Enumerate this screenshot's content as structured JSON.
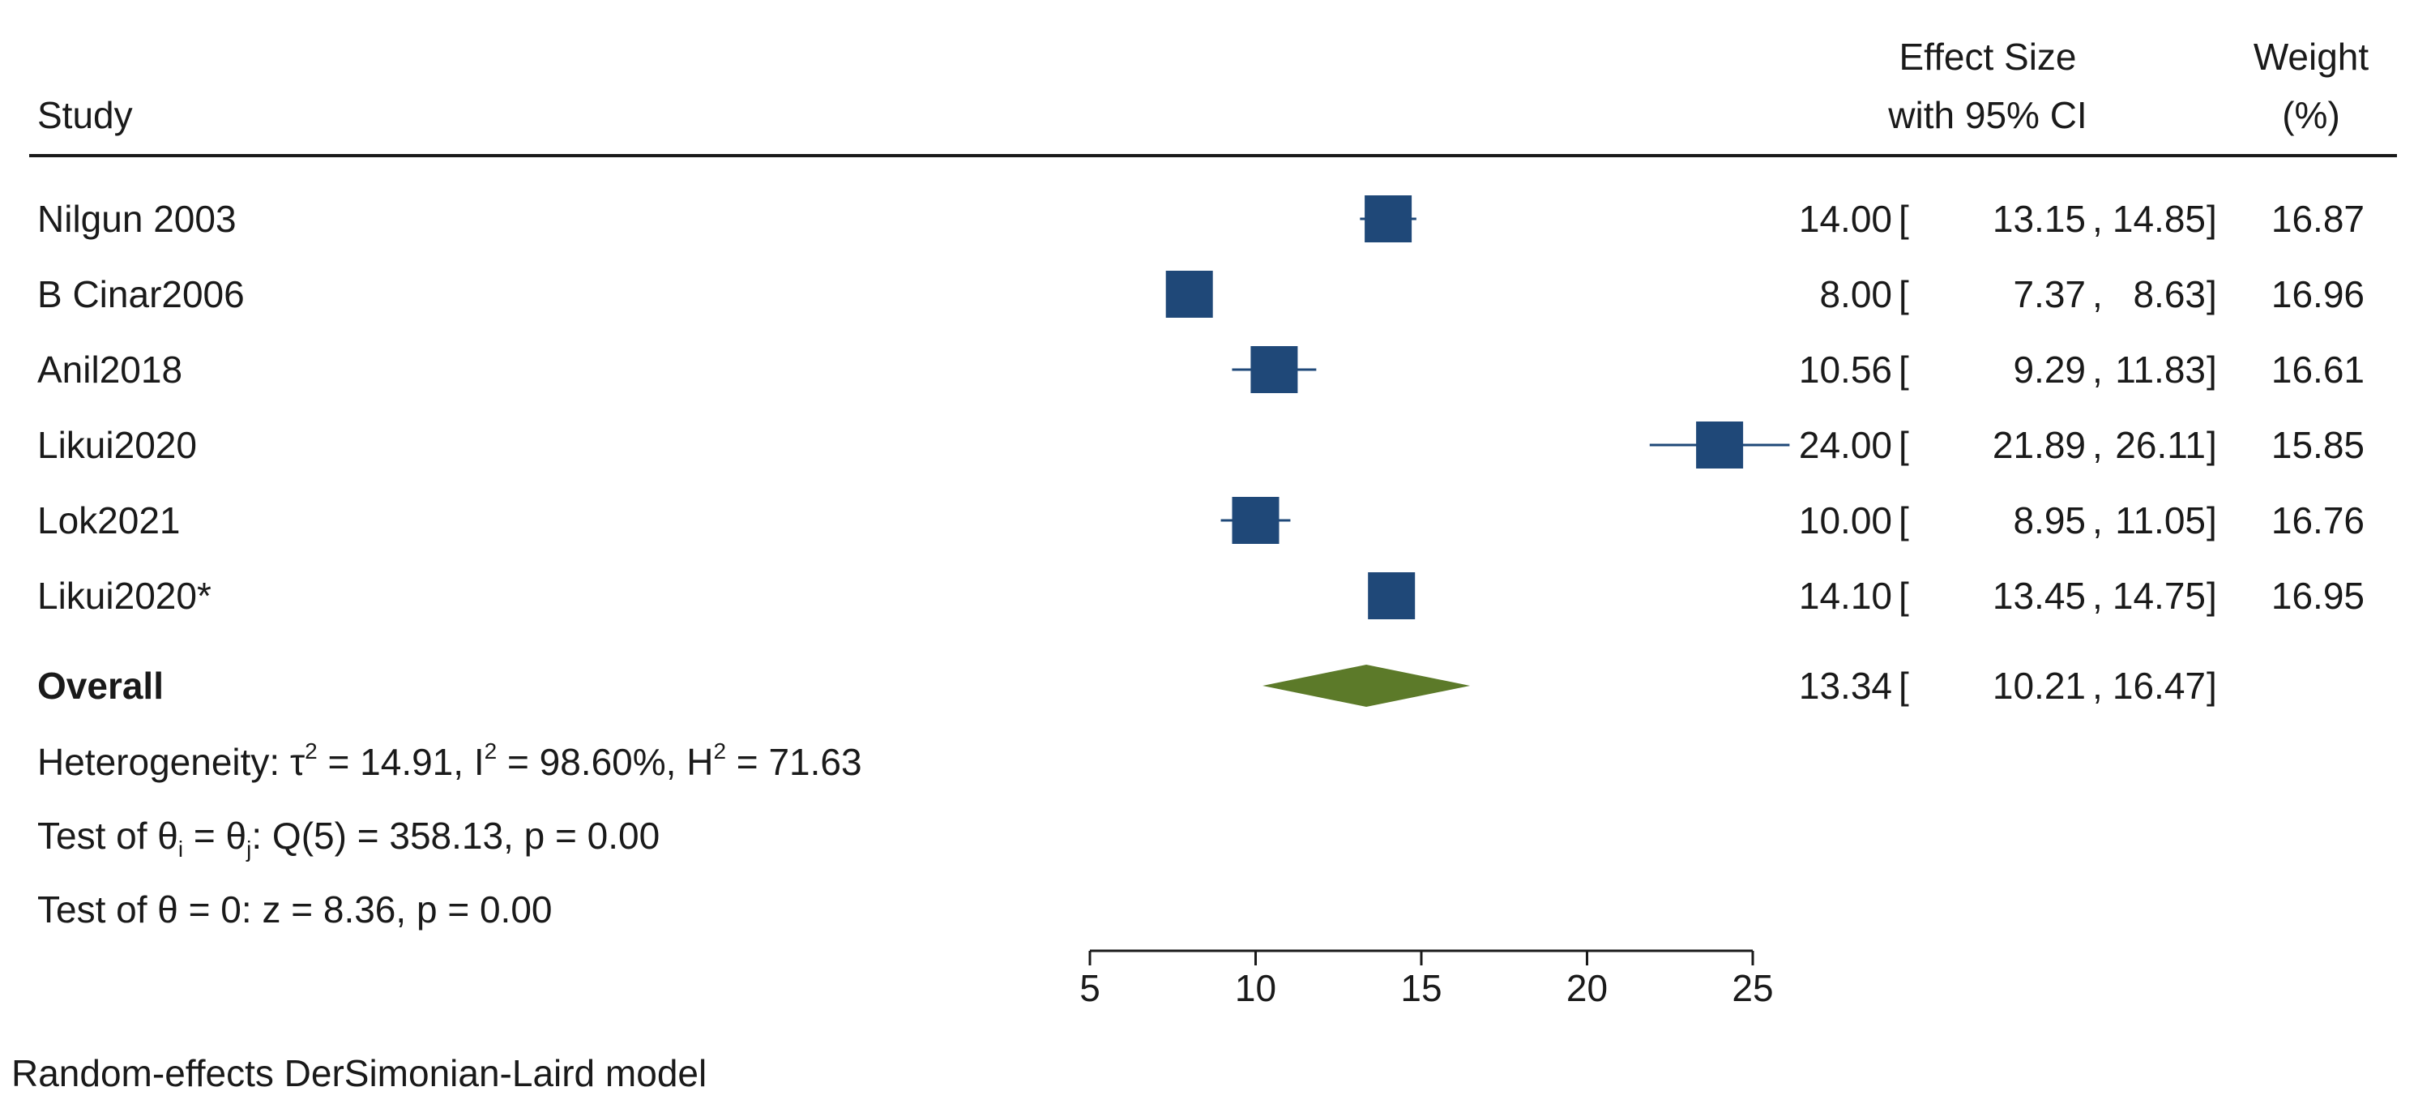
{
  "header": {
    "study_label": "Study",
    "effect_label_line1": "Effect Size",
    "effect_label_line2": "with 95% CI",
    "weight_label_line1": "Weight",
    "weight_label_line2": "(%)"
  },
  "chart_data": {
    "type": "forest",
    "studies": [
      {
        "name": "Nilgun  2003",
        "effect": 14.0,
        "ci": [
          13.15,
          14.85
        ],
        "weight": 16.87,
        "effect_text": "14.00",
        "lo_text": "13.15",
        "hi_text": "14.85",
        "weight_text": "16.87"
      },
      {
        "name": "B Cinar2006",
        "effect": 8.0,
        "ci": [
          7.37,
          8.63
        ],
        "weight": 16.96,
        "effect_text": "8.00",
        "lo_text": "7.37",
        "hi_text": "8.63",
        "weight_text": "16.96"
      },
      {
        "name": "Anil2018",
        "effect": 10.56,
        "ci": [
          9.29,
          11.83
        ],
        "weight": 16.61,
        "effect_text": "10.56",
        "lo_text": "9.29",
        "hi_text": "11.83",
        "weight_text": "16.61"
      },
      {
        "name": "Likui2020",
        "effect": 24.0,
        "ci": [
          21.89,
          26.11
        ],
        "weight": 15.85,
        "effect_text": "24.00",
        "lo_text": "21.89",
        "hi_text": "26.11",
        "weight_text": "15.85"
      },
      {
        "name": "Lok2021",
        "effect": 10.0,
        "ci": [
          8.95,
          11.05
        ],
        "weight": 16.76,
        "effect_text": "10.00",
        "lo_text": "8.95",
        "hi_text": "11.05",
        "weight_text": "16.76"
      },
      {
        "name": "Likui2020*",
        "effect": 14.1,
        "ci": [
          13.45,
          14.75
        ],
        "weight": 16.95,
        "effect_text": "14.10",
        "lo_text": "13.45",
        "hi_text": "14.75",
        "weight_text": "16.95"
      }
    ],
    "overall": {
      "name": "Overall",
      "effect": 13.34,
      "ci": [
        10.21,
        16.47
      ],
      "effect_text": "13.34",
      "lo_text": "10.21",
      "hi_text": "16.47"
    },
    "heterogeneity": {
      "prefix": "Heterogeneity: ",
      "tau2": "14.91",
      "I2": "98.60%",
      "H2": "71.63"
    },
    "test_equal": {
      "prefix": "Test of ",
      "stat": ": Q(5) = 358.13, p = 0.00"
    },
    "test_zero": {
      "text": "Test of θ = 0: z = 8.36, p = 0.00"
    },
    "x_axis": {
      "range": [
        5,
        25
      ],
      "ticks": [
        5,
        10,
        15,
        20,
        25
      ]
    },
    "model_note": "Random-effects DerSimonian-Laird model",
    "colors": {
      "study_marker": "#1f4878",
      "overall_marker": "#5c7a29",
      "text": "#1a1a1a",
      "rule": "#1a1a1a"
    }
  }
}
